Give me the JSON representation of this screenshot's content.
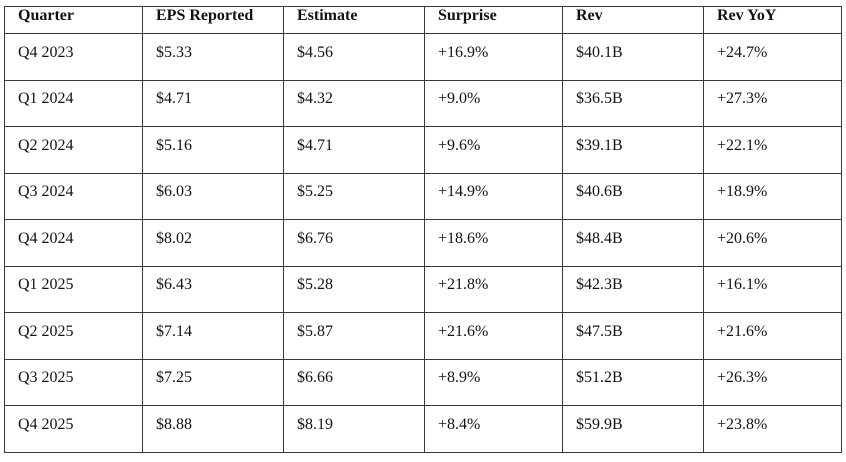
{
  "chart_data": {
    "type": "table",
    "columns": [
      "Quarter",
      "EPS Reported",
      "Estimate",
      "Surprise",
      "Rev",
      "Rev YoY"
    ],
    "rows": [
      [
        "Q4 2023",
        "$5.33",
        "$4.56",
        "+16.9%",
        "$40.1B",
        "+24.7%"
      ],
      [
        "Q1 2024",
        "$4.71",
        "$4.32",
        "+9.0%",
        "$36.5B",
        "+27.3%"
      ],
      [
        "Q2 2024",
        "$5.16",
        "$4.71",
        "+9.6%",
        "$39.1B",
        "+22.1%"
      ],
      [
        "Q3 2024",
        "$6.03",
        "$5.25",
        "+14.9%",
        "$40.6B",
        "+18.9%"
      ],
      [
        "Q4 2024",
        "$8.02",
        "$6.76",
        "+18.6%",
        "$48.4B",
        "+20.6%"
      ],
      [
        "Q1 2025",
        "$6.43",
        "$5.28",
        "+21.8%",
        "$42.3B",
        "+16.1%"
      ],
      [
        "Q2 2025",
        "$7.14",
        "$5.87",
        "+21.6%",
        "$47.5B",
        "+21.6%"
      ],
      [
        "Q3 2025",
        "$7.25",
        "$6.66",
        "+8.9%",
        "$51.2B",
        "+26.3%"
      ],
      [
        "Q4 2025",
        "$8.88",
        "$8.19",
        "+8.4%",
        "$59.9B",
        "+23.8%"
      ]
    ],
    "colors": {
      "border": "#3a3a3a",
      "text": "#121212",
      "background": "#ffffff"
    }
  }
}
